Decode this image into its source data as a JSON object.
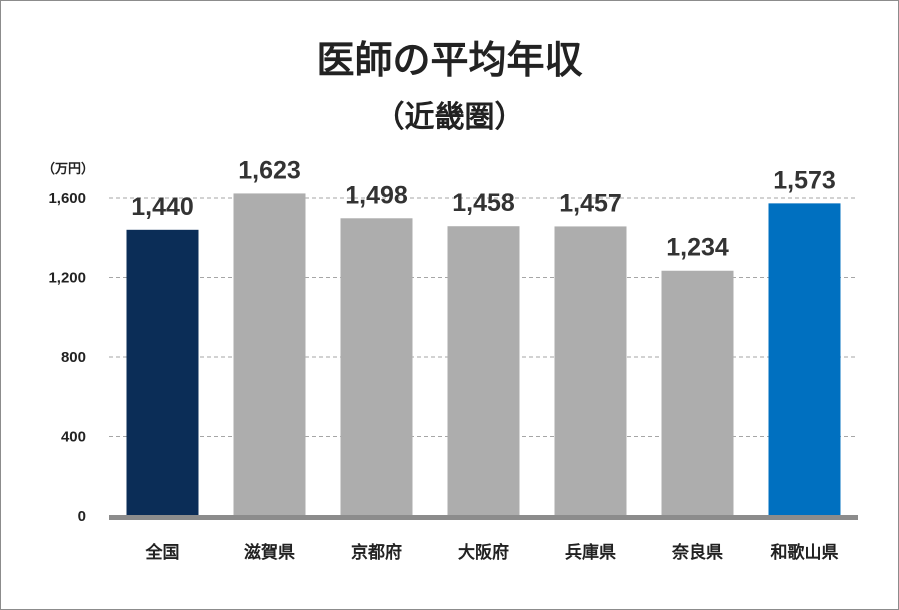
{
  "chart_data": {
    "type": "bar",
    "title": "医師の平均年収",
    "subtitle": "（近畿圏）",
    "unit_label": "（万円）",
    "categories": [
      "全国",
      "滋賀県",
      "京都府",
      "大阪府",
      "兵庫県",
      "奈良県",
      "和歌山県"
    ],
    "values": [
      1440,
      1623,
      1498,
      1458,
      1457,
      1234,
      1573
    ],
    "value_labels": [
      "1,440",
      "1,623",
      "1,498",
      "1,458",
      "1,457",
      "1,234",
      "1,573"
    ],
    "bar_colors": [
      "#0b2d57",
      "#adadad",
      "#adadad",
      "#adadad",
      "#adadad",
      "#adadad",
      "#0070c0"
    ],
    "ylim": [
      0,
      1600
    ],
    "y_ticks": [
      0,
      400,
      800,
      1200,
      1600
    ],
    "y_tick_labels": [
      "0",
      "400",
      "800",
      "1,200",
      "1,600"
    ],
    "grid": true,
    "grid_style": "dashed",
    "legend": "none"
  }
}
